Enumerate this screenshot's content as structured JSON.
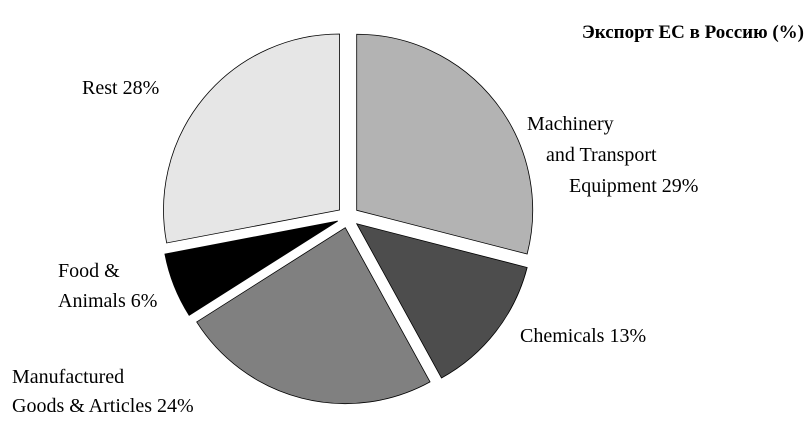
{
  "chart_data": {
    "type": "pie",
    "title": "Экспорт ЕС в Россию (%)",
    "categories": [
      "Machinery and Transport Equipment",
      "Chemicals",
      "Manufactured Goods & Articles",
      "Food & Animals",
      "Rest"
    ],
    "values": [
      29,
      13,
      24,
      6,
      28
    ],
    "value_labels": [
      "29%",
      "13%",
      "24%",
      "6%",
      "28%"
    ],
    "colors": [
      "#b3b3b3",
      "#4d4d4d",
      "#808080",
      "#000000",
      "#e6e6e6"
    ]
  }
}
